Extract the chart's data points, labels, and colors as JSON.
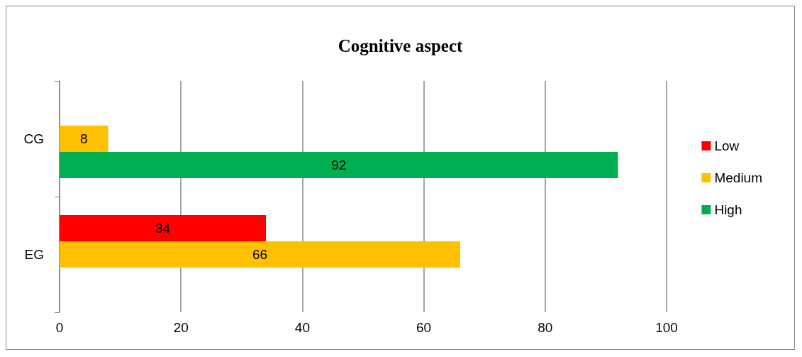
{
  "chart_data": {
    "type": "bar",
    "orientation": "horizontal",
    "title": "Cognitive aspect",
    "categories": [
      "CG",
      "EG"
    ],
    "series": [
      {
        "name": "Low",
        "color": "#ff0000",
        "values": [
          null,
          34
        ]
      },
      {
        "name": "Medium",
        "color": "#ffc000",
        "values": [
          8,
          66
        ]
      },
      {
        "name": "High",
        "color": "#00b050",
        "values": [
          92,
          null
        ]
      }
    ],
    "xlim": [
      0,
      100
    ],
    "xticks": [
      0,
      20,
      40,
      60,
      80,
      100
    ],
    "grid": "x",
    "legend": "right",
    "data_labels": true
  }
}
